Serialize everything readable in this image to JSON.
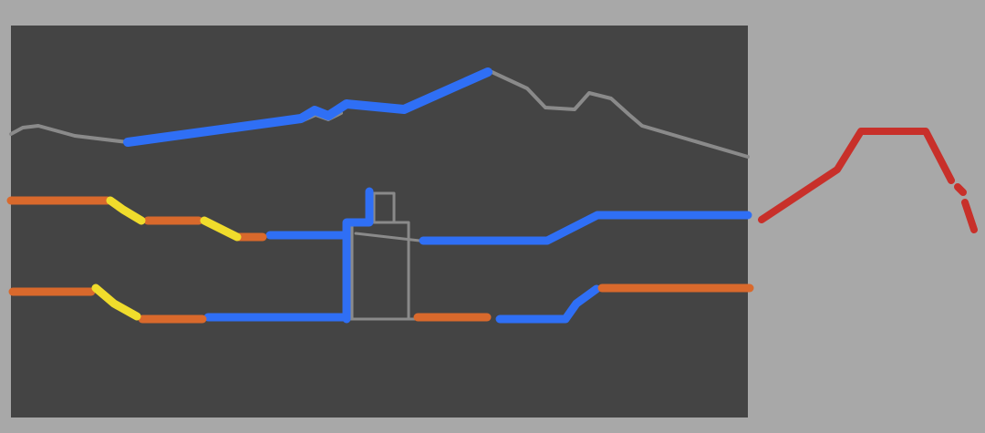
{
  "colors": {
    "page_background": "#a8a8a8",
    "panel": "#444444",
    "grey": "#8a8a8a",
    "blue": "#2f6ff5",
    "orange": "#d9692c",
    "yellow": "#f0dc2c",
    "red": "#c8302a"
  }
}
